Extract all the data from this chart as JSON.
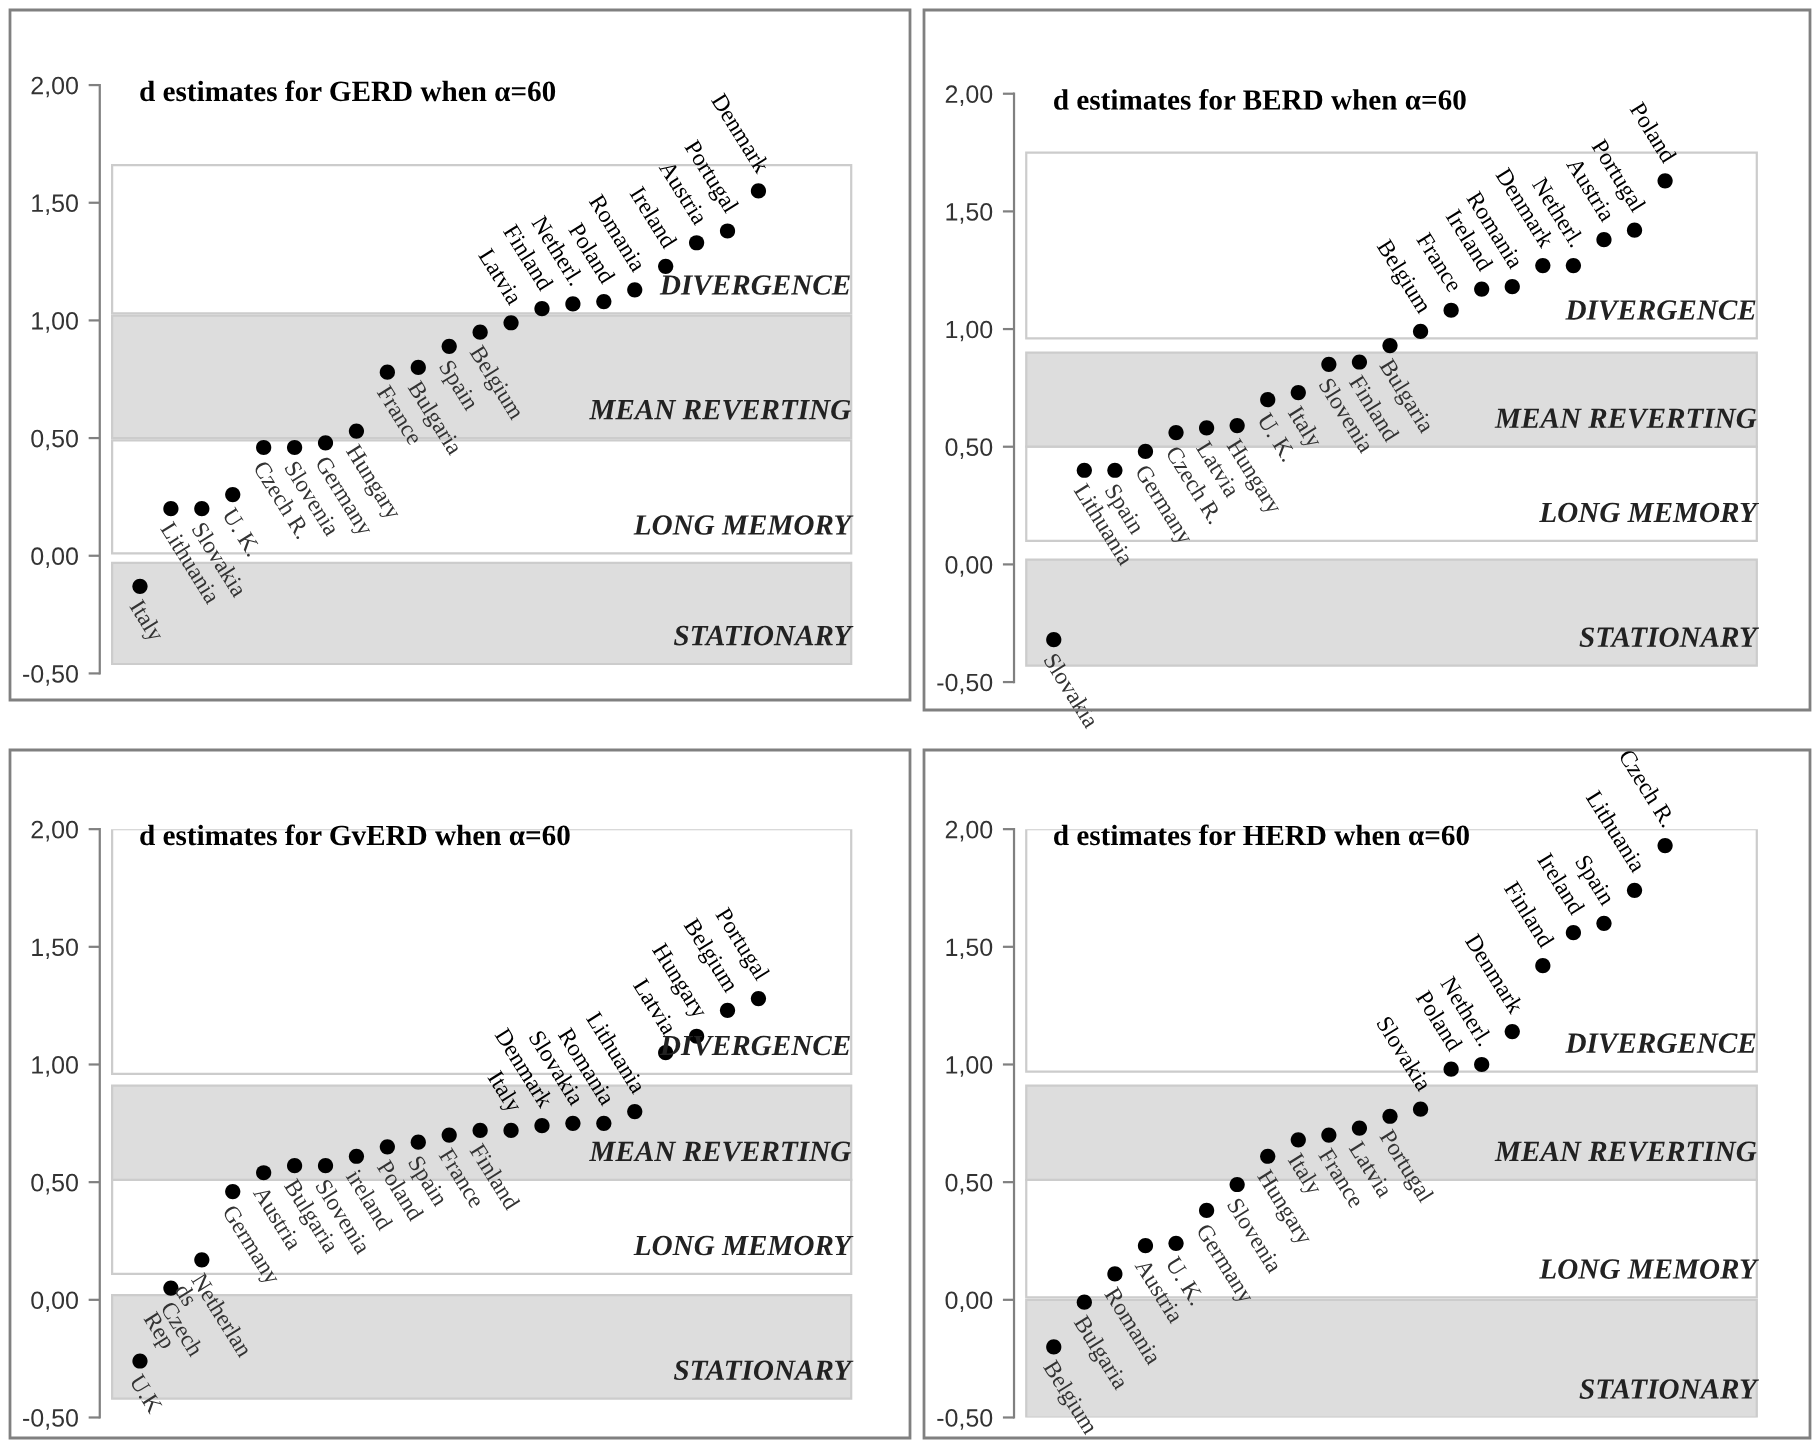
{
  "chart_data": [
    {
      "type": "scatter",
      "title": "d estimates for GERD when α=60",
      "marker": "circle",
      "grid": false,
      "tick_labels": "y",
      "categories": [
        "Italy",
        "Lithuania",
        "Slovakia",
        "U. K.",
        "Czech R.",
        "Slovenia",
        "Germany",
        "Hungary",
        "France",
        "Bulgaria",
        "Spain",
        "Belgium",
        "Latvia",
        "Finland",
        "Netherl.",
        "Poland",
        "Romania",
        "Ireland",
        "Austria",
        "Portugal",
        "Denmark"
      ],
      "series": [
        {
          "color": "#000000",
          "values": [
            -0.13,
            0.2,
            0.2,
            0.26,
            0.46,
            0.46,
            0.48,
            0.53,
            0.78,
            0.8,
            0.89,
            0.95,
            0.99,
            1.05,
            1.07,
            1.08,
            1.13,
            1.23,
            1.33,
            1.38,
            1.55
          ]
        }
      ],
      "ylim": [
        -0.5,
        2.0
      ],
      "yticks": [
        {
          "value": -0.5,
          "label": "-0,50"
        },
        {
          "value": 0,
          "label": "0,00"
        },
        {
          "value": 0.5,
          "label": "0,50"
        },
        {
          "value": 1.0,
          "label": "1,00"
        },
        {
          "value": 1.5,
          "label": "1,50"
        },
        {
          "value": 2.0,
          "label": "2,00"
        }
      ],
      "bands": [
        {
          "axis": "y",
          "from": -0.46,
          "to": -0.03,
          "label": "STATIONARY",
          "color": "#dddddd"
        },
        {
          "axis": "y",
          "from": 0.01,
          "to": 0.49,
          "label": "LONG MEMORY",
          "color": "#ffffff"
        },
        {
          "axis": "y",
          "from": 0.5,
          "to": 1.02,
          "label": "MEAN REVERTING",
          "color": "#dddddd"
        },
        {
          "axis": "y",
          "from": 1.03,
          "to": 1.66,
          "label": "DIVERGENCE",
          "color": "#ffffff"
        }
      ]
    },
    {
      "type": "scatter",
      "title": "d estimates for BERD when α=60",
      "marker": "circle",
      "grid": false,
      "tick_labels": "y",
      "categories": [
        "Slovakia",
        "Lithuania",
        "Spain",
        "Germany",
        "Czech R.",
        "Latvia",
        "Hungary",
        "U. K.",
        "Italy",
        "Slovenia",
        "Finland",
        "Bulgaria",
        "Belgium",
        "France",
        "Ireland",
        "Romania",
        "Denmark",
        "Netherl.",
        "Austria",
        "Portugal",
        "Poland"
      ],
      "series": [
        {
          "color": "#000000",
          "values": [
            -0.32,
            0.4,
            0.4,
            0.48,
            0.56,
            0.58,
            0.59,
            0.7,
            0.73,
            0.85,
            0.86,
            0.93,
            0.99,
            1.08,
            1.17,
            1.18,
            1.27,
            1.27,
            1.38,
            1.42,
            1.63
          ]
        }
      ],
      "ylim": [
        -0.5,
        2.0
      ],
      "yticks": [
        {
          "value": -0.5,
          "label": "-0,50"
        },
        {
          "value": 0,
          "label": "0,00"
        },
        {
          "value": 0.5,
          "label": "0,50"
        },
        {
          "value": 1.0,
          "label": "1,00"
        },
        {
          "value": 1.5,
          "label": "1,50"
        },
        {
          "value": 2.0,
          "label": "2,00"
        }
      ],
      "bands": [
        {
          "axis": "y",
          "from": -0.43,
          "to": 0.02,
          "label": "STATIONARY",
          "color": "#dddddd"
        },
        {
          "axis": "y",
          "from": 0.1,
          "to": 0.5,
          "label": "LONG MEMORY",
          "color": "#ffffff"
        },
        {
          "axis": "y",
          "from": 0.5,
          "to": 0.9,
          "label": "MEAN REVERTING",
          "color": "#dddddd"
        },
        {
          "axis": "y",
          "from": 0.96,
          "to": 1.75,
          "label": "DIVERGENCE",
          "color": "#ffffff"
        }
      ]
    },
    {
      "type": "scatter",
      "title": "d estimates for GvERD when α=60",
      "marker": "circle",
      "grid": false,
      "tick_labels": "y",
      "categories": [
        "U.K",
        "Czech\nRep",
        "Netherlan\nds",
        "Germany",
        "Austria",
        "Bulgaria",
        "Slovenia",
        "ireland",
        "Poland",
        "Spain",
        "France",
        "Finland",
        "Italy",
        "Denmark",
        "Slovakia",
        "Romania",
        "Lithuania",
        "Latvia",
        "Hungary",
        "Belgium",
        "Portugal"
      ],
      "series": [
        {
          "color": "#000000",
          "values": [
            -0.26,
            0.05,
            0.17,
            0.46,
            0.54,
            0.57,
            0.57,
            0.61,
            0.65,
            0.67,
            0.7,
            0.72,
            0.72,
            0.74,
            0.75,
            0.75,
            0.8,
            1.05,
            1.12,
            1.23,
            1.28
          ]
        }
      ],
      "ylim": [
        -0.5,
        2.0
      ],
      "yticks": [
        {
          "value": -0.5,
          "label": "-0,50"
        },
        {
          "value": 0,
          "label": "0,00"
        },
        {
          "value": 0.5,
          "label": "0,50"
        },
        {
          "value": 1.0,
          "label": "1,00"
        },
        {
          "value": 1.5,
          "label": "1,50"
        },
        {
          "value": 2.0,
          "label": "2,00"
        }
      ],
      "bands": [
        {
          "axis": "y",
          "from": -0.42,
          "to": 0.02,
          "label": "STATIONARY",
          "color": "#dddddd"
        },
        {
          "axis": "y",
          "from": 0.11,
          "to": 0.51,
          "label": "LONG MEMORY",
          "color": "#ffffff"
        },
        {
          "axis": "y",
          "from": 0.51,
          "to": 0.91,
          "label": "MEAN REVERTING",
          "color": "#dddddd"
        },
        {
          "axis": "y",
          "from": 0.96,
          "to": 2.0,
          "label": "DIVERGENCE",
          "color": "#ffffff"
        }
      ]
    },
    {
      "type": "scatter",
      "title": "d estimates for HERD when α=60",
      "marker": "circle",
      "grid": false,
      "tick_labels": "y",
      "categories": [
        "Belgium",
        "Bulgaria",
        "Romania",
        "Austria",
        "U. K.",
        "Germany",
        "Slovenia",
        "Hungary",
        "Italy",
        "France",
        "Latvia",
        "Portugal",
        "Slovakia",
        "Poland",
        "Netherl.",
        "Denmark",
        "Finland",
        "Ireland",
        "Spain",
        "Lithuania",
        "Czech R."
      ],
      "series": [
        {
          "color": "#000000",
          "values": [
            -0.2,
            -0.01,
            0.11,
            0.23,
            0.24,
            0.38,
            0.49,
            0.61,
            0.68,
            0.7,
            0.73,
            0.78,
            0.81,
            0.98,
            1.0,
            1.14,
            1.42,
            1.56,
            1.6,
            1.74,
            1.93
          ]
        }
      ],
      "ylim": [
        -0.5,
        2.0
      ],
      "yticks": [
        {
          "value": -0.5,
          "label": "-0,50"
        },
        {
          "value": 0,
          "label": "0,00"
        },
        {
          "value": 0.5,
          "label": "0,50"
        },
        {
          "value": 1.0,
          "label": "1,00"
        },
        {
          "value": 1.5,
          "label": "1,50"
        },
        {
          "value": 2.0,
          "label": "2,00"
        }
      ],
      "bands": [
        {
          "axis": "y",
          "from": -0.5,
          "to": 0.0,
          "label": "STATIONARY",
          "color": "#dddddd"
        },
        {
          "axis": "y",
          "from": 0.01,
          "to": 0.51,
          "label": "LONG MEMORY",
          "color": "#ffffff"
        },
        {
          "axis": "y",
          "from": 0.51,
          "to": 0.91,
          "label": "MEAN REVERTING",
          "color": "#dddddd"
        },
        {
          "axis": "y",
          "from": 0.97,
          "to": 2.0,
          "label": "DIVERGENCE",
          "color": "#ffffff"
        }
      ]
    }
  ]
}
